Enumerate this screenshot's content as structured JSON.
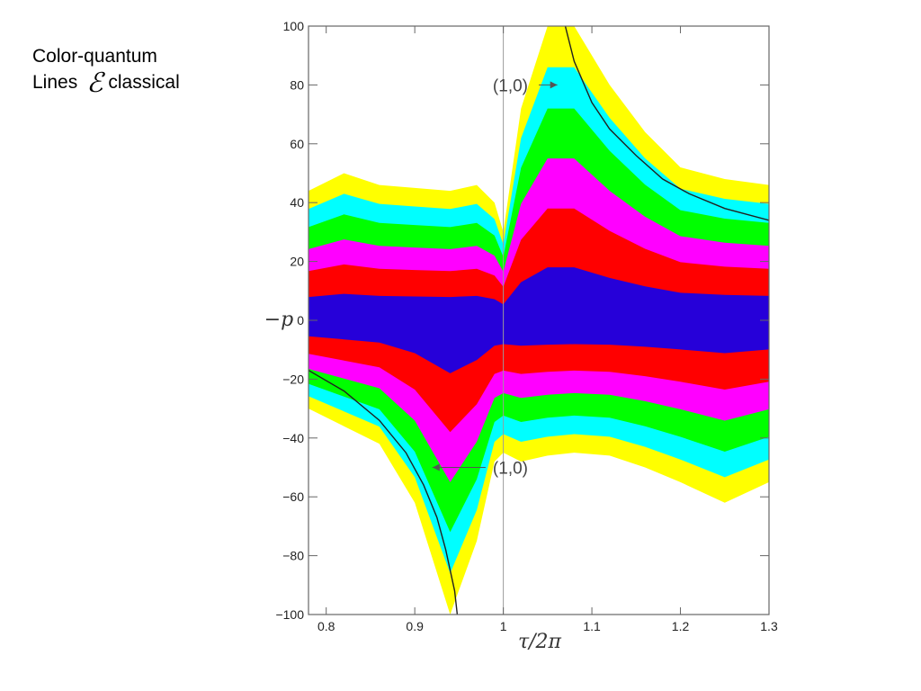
{
  "caption": {
    "line1": "Color-quantum",
    "line2_prefix": "Lines",
    "line2_symbol": "ℰ",
    "line2_suffix": "classical"
  },
  "chart_data": {
    "type": "heatmap",
    "title": "",
    "xlabel": "τ/2π",
    "ylabel": "−p",
    "xlim": [
      0.78,
      1.3
    ],
    "ylim": [
      -100,
      100
    ],
    "xticks": [
      0.8,
      0.9,
      1.0,
      1.1,
      1.2,
      1.3
    ],
    "xtick_labels": [
      "0.8",
      "0.9",
      "1",
      "1.1",
      "1.2",
      "1.3"
    ],
    "yticks": [
      100,
      80,
      60,
      40,
      20,
      0,
      -20,
      -40,
      -60,
      -80,
      -100
    ],
    "ytick_labels": [
      "100",
      "80",
      "60",
      "40",
      "20",
      "0",
      "−20",
      "−40",
      "−60",
      "−80",
      "−100"
    ],
    "vline_x": 1.0,
    "color_levels": [
      "#ffff00",
      "#00ffff",
      "#00ff00",
      "#ff00ff",
      "#ff0000",
      "#0000ff"
    ],
    "band_profile": {
      "x": [
        0.78,
        0.82,
        0.86,
        0.9,
        0.94,
        0.97,
        0.99,
        1.0,
        1.02,
        1.05,
        1.08,
        1.12,
        1.16,
        1.2,
        1.25,
        1.3
      ],
      "outer_top": [
        44,
        50,
        46,
        45,
        44,
        46,
        40,
        30,
        72,
        100,
        100,
        80,
        64,
        52,
        48,
        46
      ],
      "outer_bottom": [
        -30,
        -36,
        -42,
        -62,
        -100,
        -75,
        -48,
        -45,
        -48,
        -46,
        -45,
        -46,
        -50,
        -55,
        -62,
        -55
      ]
    },
    "classical_curves": [
      {
        "x": [
          1.07,
          1.08,
          1.1,
          1.12,
          1.15,
          1.18,
          1.21,
          1.25,
          1.3
        ],
        "y": [
          100,
          88,
          74,
          65,
          56,
          48,
          43,
          38,
          34
        ]
      },
      {
        "x": [
          0.78,
          0.82,
          0.86,
          0.89,
          0.91,
          0.925,
          0.935,
          0.945,
          0.948
        ],
        "y": [
          -17,
          -24,
          -34,
          -45,
          -56,
          -67,
          -78,
          -92,
          -100
        ]
      }
    ],
    "annotations": [
      {
        "text": "(1,0)",
        "x": 1.04,
        "y": 80,
        "arrow_to": [
          1.061,
          80
        ],
        "text_side": "left"
      },
      {
        "text": "(1,0)",
        "x": 0.98,
        "y": -50,
        "arrow_to": [
          0.92,
          -50
        ],
        "text_side": "right"
      }
    ]
  }
}
